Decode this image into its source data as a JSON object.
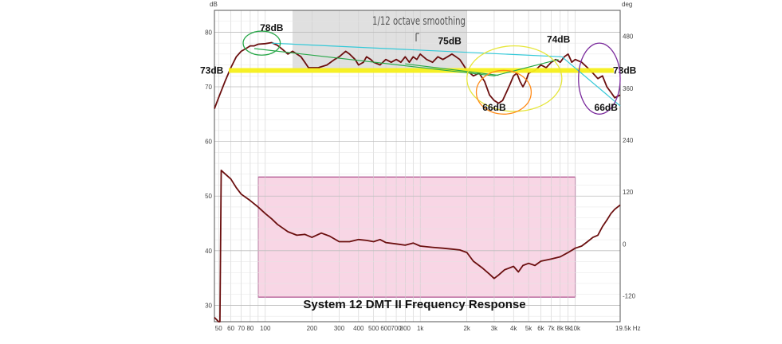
{
  "chart_data": {
    "type": "line",
    "title": "System 12 DMT II Frequency Response",
    "subtitle": "1/12 octave smoothing",
    "xscale": "log",
    "xlim": [
      47,
      19500
    ],
    "y_left": {
      "unit": "dB",
      "lim": [
        27,
        84
      ],
      "ticks": [
        30,
        40,
        50,
        60,
        70,
        80
      ]
    },
    "y_right": {
      "unit": "deg",
      "lim": [
        -180,
        540
      ],
      "ticks": [
        -120,
        0,
        120,
        240,
        360,
        480
      ]
    },
    "x_ticks": [
      {
        "value": 50,
        "label": "50"
      },
      {
        "value": 60,
        "label": "60"
      },
      {
        "value": 70,
        "label": "70"
      },
      {
        "value": 80,
        "label": "80"
      },
      {
        "value": 100,
        "label": "100"
      },
      {
        "value": 200,
        "label": "200"
      },
      {
        "value": 300,
        "label": "300"
      },
      {
        "value": 400,
        "label": "400"
      },
      {
        "value": 500,
        "label": "500"
      },
      {
        "value": 600,
        "label": "600"
      },
      {
        "value": 700,
        "label": "700"
      },
      {
        "value": 800,
        "label": "800"
      },
      {
        "value": 1000,
        "label": "1k"
      },
      {
        "value": 2000,
        "label": "2k"
      },
      {
        "value": 3000,
        "label": "3k"
      },
      {
        "value": 4000,
        "label": "4k"
      },
      {
        "value": 5000,
        "label": "5k"
      },
      {
        "value": 6000,
        "label": "6k"
      },
      {
        "value": 7000,
        "label": "7k"
      },
      {
        "value": 8000,
        "label": "8k"
      },
      {
        "value": 9000,
        "label": "9k"
      },
      {
        "value": 10000,
        "label": "10k"
      },
      {
        "value": 19500,
        "label": "19.5k Hz"
      }
    ],
    "grid": true,
    "series": [
      {
        "name": "",
        "axis": "left",
        "color": "#6b0f0f",
        "x": [
          47,
          50,
          55,
          60,
          65,
          70,
          75,
          80,
          85,
          90,
          100,
          110,
          120,
          130,
          140,
          150,
          160,
          170,
          180,
          190,
          200,
          220,
          250,
          280,
          300,
          330,
          350,
          380,
          400,
          430,
          450,
          480,
          500,
          550,
          600,
          650,
          700,
          750,
          800,
          850,
          900,
          950,
          1000,
          1100,
          1200,
          1300,
          1400,
          1500,
          1600,
          1700,
          1800,
          1900,
          2000,
          2200,
          2400,
          2600,
          2800,
          3000,
          3200,
          3400,
          3600,
          3800,
          4000,
          4200,
          4400,
          4600,
          4800,
          5000,
          5500,
          6000,
          6500,
          7000,
          7500,
          8000,
          8500,
          9000,
          9500,
          10000,
          11000,
          12000,
          13000,
          14000,
          15000,
          16000,
          17000,
          18000,
          19500
        ],
        "y": [
          66,
          68,
          71,
          73.5,
          75.5,
          76.5,
          77,
          77.5,
          77.5,
          77.8,
          77.9,
          78.1,
          77.6,
          76.8,
          76,
          76.5,
          76,
          75.5,
          74.5,
          73.5,
          73.5,
          73.5,
          74,
          75,
          75.5,
          76.5,
          76,
          75,
          74,
          74.5,
          75.5,
          75,
          74.5,
          74,
          75,
          74.5,
          75,
          74.5,
          75.5,
          74.5,
          75.5,
          75,
          76,
          75,
          74.5,
          75.5,
          75,
          75.5,
          76,
          75.5,
          75,
          74,
          73,
          72,
          72.5,
          71,
          68.5,
          67.5,
          67,
          67.5,
          69,
          70.5,
          72,
          72.5,
          71,
          70,
          71,
          72.5,
          73,
          74,
          73.5,
          74.5,
          75,
          74.5,
          75.5,
          76,
          74.5,
          75,
          74.5,
          73.5,
          72.5,
          71.5,
          72,
          70,
          69,
          68,
          68.5
        ]
      },
      {
        "name": "",
        "axis": "right",
        "color": "#6b0f0f",
        "x": [
          47,
          50,
          51,
          52,
          55,
          60,
          65,
          70,
          80,
          90,
          100,
          110,
          120,
          140,
          160,
          180,
          200,
          230,
          260,
          300,
          350,
          400,
          450,
          500,
          550,
          600,
          700,
          800,
          900,
          1000,
          1200,
          1400,
          1600,
          1800,
          2000,
          2200,
          2500,
          2800,
          3000,
          3200,
          3500,
          4000,
          4300,
          4600,
          5000,
          5500,
          6000,
          7000,
          8000,
          9000,
          10000,
          11000,
          12000,
          13000,
          14000,
          15000,
          16000,
          17000,
          18000,
          19500
        ],
        "y": [
          -170,
          -180,
          -180,
          170,
          162,
          150,
          130,
          115,
          100,
          85,
          70,
          58,
          45,
          28,
          20,
          22,
          15,
          25,
          18,
          5,
          5,
          10,
          8,
          5,
          10,
          3,
          0,
          -3,
          2,
          -5,
          -8,
          -10,
          -12,
          -14,
          -20,
          -40,
          -55,
          -70,
          -80,
          -72,
          -60,
          -52,
          -65,
          -50,
          -45,
          -50,
          -40,
          -35,
          -30,
          -20,
          -10,
          -5,
          5,
          15,
          20,
          40,
          55,
          70,
          80,
          90
        ]
      }
    ],
    "reference_line": {
      "value": 73,
      "label_left": "73dB",
      "label_right": "73dB"
    },
    "annotations": [
      {
        "text": "78dB",
        "x": 110,
        "y": 80.2
      },
      {
        "text": "75dB",
        "x": 1550,
        "y": 77.8
      },
      {
        "text": "74dB",
        "x": 7800,
        "y": 78.1
      },
      {
        "text": "66dB",
        "x": 3000,
        "y": 65.6
      },
      {
        "text": "66dB",
        "x": 15800,
        "y": 65.6
      }
    ],
    "trend_lines": [
      {
        "color": "#34c9d8",
        "points": [
          [
            110,
            78
          ],
          [
            8200,
            75.5
          ],
          [
            19500,
            66.5
          ]
        ]
      },
      {
        "color": "#2aa84a",
        "points": [
          [
            85,
            77
          ],
          [
            3000,
            72
          ],
          [
            7800,
            75
          ]
        ]
      },
      {
        "color": "#2aa84a",
        "points": [
          [
            800,
            74.2
          ],
          [
            3200,
            72.1
          ]
        ]
      }
    ],
    "shaded_regions": [
      {
        "axis": "left",
        "x0": 150,
        "x1": 2000,
        "y0": 73,
        "y1": 84,
        "color": "#cccccc"
      },
      {
        "axis": "left",
        "x0": 90,
        "x1": 10000,
        "y0": 31.5,
        "y1": 53.5,
        "color": "#f6c8dc"
      }
    ],
    "highlight_ellipses": [
      {
        "cx_value": 90,
        "cy_value": 78,
        "x_lo": 72,
        "x_hi": 125,
        "ry_db": 2.2,
        "color": "#2aa84a"
      },
      {
        "cx_value": 4000,
        "cy_value": 71.5,
        "x_lo": 2000,
        "x_hi": 8200,
        "ry_db": 6,
        "color": "#e6e63a"
      },
      {
        "cx_value": 3600,
        "cy_value": 69,
        "x_lo": 2300,
        "x_hi": 5200,
        "ry_db": 4,
        "color": "#ff8c1a"
      },
      {
        "cx_value": 14500,
        "cy_value": 71.5,
        "x_lo": 10500,
        "x_hi": 19500,
        "ry_db": 6.5,
        "color": "#7a2a9c"
      }
    ]
  }
}
